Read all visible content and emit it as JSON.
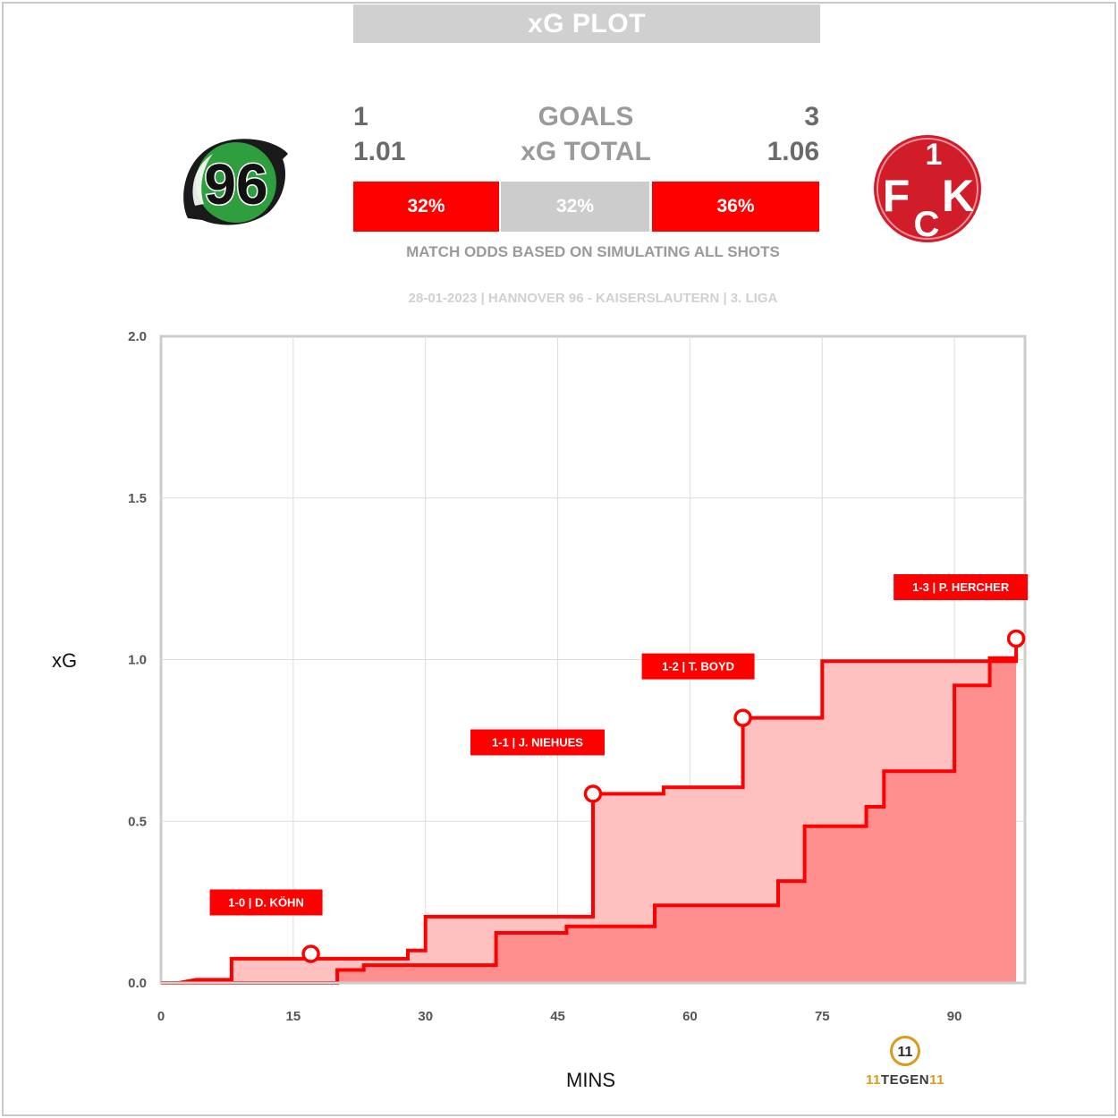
{
  "header": {
    "title": "xG PLOT"
  },
  "teams": {
    "home": {
      "goals": "1",
      "xg_total": "1.01",
      "logo_text": "96",
      "colors": {
        "ring": "#1a1a1a",
        "fill": "#2e9e3e",
        "stripe": "#ffffff"
      }
    },
    "away": {
      "goals": "3",
      "xg_total": "1.06",
      "logo_text_a": "1",
      "logo_text_b": "F",
      "logo_text_c": "C",
      "logo_text_d": "K",
      "colors": {
        "fill": "#d11c2a",
        "text": "#ffffff"
      }
    }
  },
  "labels": {
    "goals": "GOALS",
    "xg_total": "xG TOTAL"
  },
  "odds": {
    "home": {
      "label": "32%",
      "value": 0.32,
      "color": "#ff0000"
    },
    "draw": {
      "label": "32%",
      "value": 0.32,
      "color": "#cccccc"
    },
    "away": {
      "label": "36%",
      "value": 0.36,
      "color": "#ff0000"
    }
  },
  "odds_caption": "MATCH ODDS BASED ON SIMULATING ALL SHOTS",
  "match_info": "28-01-2023 | HANNOVER 96 - KAISERSLAUTERN | 3. LIGA",
  "brand": {
    "line1": "11",
    "line2": "TEGEN",
    "line3": "11"
  },
  "chart_data": {
    "type": "area",
    "xlabel": "MINS",
    "ylabel": "xG",
    "xlim": [
      0,
      98
    ],
    "ylim": [
      0,
      2.0
    ],
    "xticks": [
      0,
      15,
      30,
      45,
      60,
      75,
      90
    ],
    "yticks": [
      0.0,
      0.5,
      1.0,
      1.5,
      2.0
    ],
    "ytick_labels": [
      "0.0",
      "0.5",
      "1.0",
      "1.5",
      "2.0"
    ],
    "grid": true,
    "colors": {
      "line": "#ff0000",
      "light_fill": "#ffc0c0",
      "dark_fill": "#ff8f8f",
      "grid": "#dddddd"
    },
    "series": [
      {
        "id": "upper",
        "style": "step",
        "points": [
          [
            2,
            0.0
          ],
          [
            4,
            0.01
          ],
          [
            8,
            0.01
          ],
          [
            8,
            0.075
          ],
          [
            28,
            0.075
          ],
          [
            28,
            0.1
          ],
          [
            30,
            0.1
          ],
          [
            30,
            0.205
          ],
          [
            49,
            0.205
          ],
          [
            49,
            0.585
          ],
          [
            57,
            0.585
          ],
          [
            57,
            0.605
          ],
          [
            66,
            0.605
          ],
          [
            66,
            0.82
          ],
          [
            75,
            0.82
          ],
          [
            75,
            0.995
          ],
          [
            97,
            0.995
          ],
          [
            97,
            1.065
          ]
        ]
      },
      {
        "id": "lower",
        "style": "step",
        "points": [
          [
            0,
            0.0
          ],
          [
            20,
            0.0
          ],
          [
            20,
            0.04
          ],
          [
            23,
            0.04
          ],
          [
            23,
            0.055
          ],
          [
            38,
            0.055
          ],
          [
            38,
            0.155
          ],
          [
            46,
            0.155
          ],
          [
            46,
            0.175
          ],
          [
            56,
            0.175
          ],
          [
            56,
            0.24
          ],
          [
            70,
            0.24
          ],
          [
            70,
            0.315
          ],
          [
            73,
            0.315
          ],
          [
            73,
            0.485
          ],
          [
            80,
            0.485
          ],
          [
            80,
            0.545
          ],
          [
            82,
            0.545
          ],
          [
            82,
            0.655
          ],
          [
            90,
            0.655
          ],
          [
            90,
            0.92
          ],
          [
            94,
            0.92
          ],
          [
            94,
            1.005
          ],
          [
            97,
            1.005
          ],
          [
            97,
            0.995
          ]
        ]
      }
    ],
    "annotations": [
      {
        "x": 17,
        "y": 0.09,
        "label": "1-0 | D. KÖHN"
      },
      {
        "x": 49,
        "y": 0.585,
        "label": "1-1 | J. NIEHUES"
      },
      {
        "x": 66,
        "y": 0.82,
        "label": "1-2 | T. BOYD"
      },
      {
        "x": 97,
        "y": 1.065,
        "label": "1-3 | P. HERCHER"
      }
    ]
  }
}
